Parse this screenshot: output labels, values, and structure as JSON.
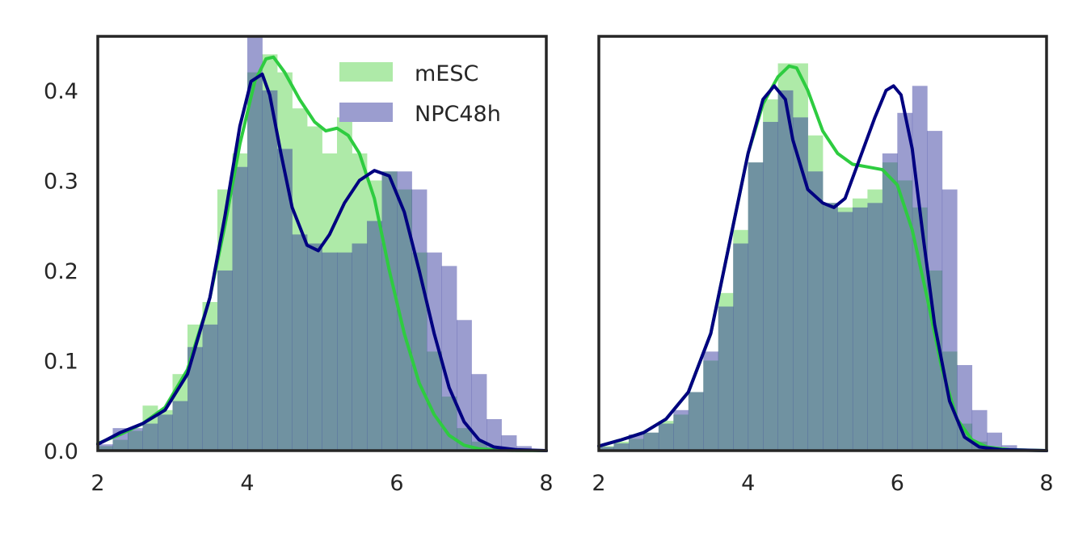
{
  "chart_data": [
    {
      "type": "histogram+kde",
      "panel": "left",
      "xlim": [
        2,
        8
      ],
      "ylim": [
        0,
        0.46
      ],
      "xticks": [
        "2",
        "4",
        "6",
        "8"
      ],
      "yticks": [
        "0.0",
        "0.1",
        "0.2",
        "0.3",
        "0.4"
      ],
      "grid": false,
      "legend": {
        "placement": "top-right",
        "entries": [
          "mESC",
          "NPC48h"
        ]
      },
      "bin_edges": [
        2.0,
        2.2,
        2.4,
        2.6,
        2.8,
        3.0,
        3.2,
        3.4,
        3.6,
        3.8,
        4.0,
        4.2,
        4.4,
        4.6,
        4.8,
        5.0,
        5.2,
        5.4,
        5.6,
        5.8,
        6.0,
        6.2,
        6.4,
        6.6,
        6.8,
        7.0,
        7.2,
        7.4,
        7.6,
        7.8,
        8.0
      ],
      "series": [
        {
          "name": "mESC",
          "color": "#2ecc40",
          "fill": "#aeeaa8",
          "hist": [
            0.005,
            0.012,
            0.022,
            0.05,
            0.045,
            0.085,
            0.14,
            0.165,
            0.29,
            0.33,
            0.42,
            0.44,
            0.42,
            0.38,
            0.36,
            0.33,
            0.37,
            0.33,
            0.3,
            0.31,
            0.29,
            0.22,
            0.11,
            0.06,
            0.025,
            0.01,
            0.004,
            0.001,
            0.0,
            0.0
          ],
          "kde_x": [
            2.0,
            2.3,
            2.6,
            2.9,
            3.2,
            3.5,
            3.7,
            3.9,
            4.1,
            4.25,
            4.35,
            4.5,
            4.7,
            4.9,
            5.05,
            5.2,
            5.35,
            5.5,
            5.7,
            5.9,
            6.1,
            6.3,
            6.5,
            6.7,
            6.9,
            7.1,
            7.3,
            7.6,
            8.0
          ],
          "kde_y": [
            0.008,
            0.018,
            0.03,
            0.048,
            0.09,
            0.17,
            0.25,
            0.34,
            0.41,
            0.435,
            0.437,
            0.42,
            0.39,
            0.365,
            0.355,
            0.358,
            0.35,
            0.33,
            0.28,
            0.2,
            0.13,
            0.075,
            0.04,
            0.017,
            0.006,
            0.002,
            0.0008,
            0.0002,
            0.0
          ]
        },
        {
          "name": "NPC48h",
          "color": "#000080",
          "fill": "#9b9dcf",
          "hist": [
            0.007,
            0.025,
            0.025,
            0.03,
            0.04,
            0.055,
            0.115,
            0.14,
            0.2,
            0.315,
            0.46,
            0.4,
            0.335,
            0.24,
            0.23,
            0.22,
            0.22,
            0.23,
            0.255,
            0.31,
            0.31,
            0.29,
            0.22,
            0.205,
            0.145,
            0.085,
            0.035,
            0.017,
            0.005,
            0.001
          ],
          "kde_x": [
            2.0,
            2.3,
            2.6,
            2.9,
            3.2,
            3.5,
            3.7,
            3.9,
            4.05,
            4.2,
            4.3,
            4.45,
            4.6,
            4.8,
            4.95,
            5.1,
            5.3,
            5.5,
            5.7,
            5.9,
            6.1,
            6.3,
            6.5,
            6.7,
            6.9,
            7.1,
            7.3,
            7.6,
            8.0
          ],
          "kde_y": [
            0.007,
            0.02,
            0.03,
            0.045,
            0.085,
            0.17,
            0.26,
            0.36,
            0.41,
            0.418,
            0.395,
            0.33,
            0.27,
            0.228,
            0.222,
            0.24,
            0.275,
            0.3,
            0.311,
            0.305,
            0.265,
            0.2,
            0.13,
            0.07,
            0.032,
            0.012,
            0.004,
            0.001,
            0.0
          ]
        }
      ]
    },
    {
      "type": "histogram+kde",
      "panel": "right",
      "xlim": [
        2,
        8
      ],
      "ylim": [
        0,
        0.46
      ],
      "xticks": [
        "2",
        "4",
        "6",
        "8"
      ],
      "yticks": [],
      "grid": false,
      "bin_edges": [
        2.0,
        2.2,
        2.4,
        2.6,
        2.8,
        3.0,
        3.2,
        3.4,
        3.6,
        3.8,
        4.0,
        4.2,
        4.4,
        4.6,
        4.8,
        5.0,
        5.2,
        5.4,
        5.6,
        5.8,
        6.0,
        6.2,
        6.4,
        6.6,
        6.8,
        7.0,
        7.2,
        7.4,
        7.6,
        7.8,
        8.0
      ],
      "series": [
        {
          "name": "mESC",
          "color": "#2ecc40",
          "fill": "#aeeaa8",
          "hist": [
            0.005,
            0.01,
            0.013,
            0.02,
            0.033,
            0.04,
            0.065,
            0.1,
            0.175,
            0.245,
            0.32,
            0.39,
            0.43,
            0.43,
            0.35,
            0.275,
            0.27,
            0.28,
            0.29,
            0.32,
            0.3,
            0.27,
            0.2,
            0.11,
            0.03,
            0.01,
            0.003,
            0.001,
            0.0,
            0.0
          ],
          "kde_x": [
            2.0,
            2.3,
            2.6,
            2.9,
            3.2,
            3.5,
            3.8,
            4.0,
            4.2,
            4.4,
            4.55,
            4.65,
            4.8,
            5.0,
            5.2,
            5.4,
            5.6,
            5.8,
            6.0,
            6.2,
            6.4,
            6.6,
            6.8,
            7.0,
            7.2,
            7.5,
            8.0
          ],
          "kde_y": [
            0.005,
            0.012,
            0.02,
            0.035,
            0.065,
            0.13,
            0.25,
            0.33,
            0.385,
            0.415,
            0.427,
            0.425,
            0.4,
            0.355,
            0.33,
            0.318,
            0.315,
            0.312,
            0.295,
            0.245,
            0.17,
            0.09,
            0.035,
            0.012,
            0.004,
            0.001,
            0.0
          ]
        },
        {
          "name": "NPC48h",
          "color": "#000080",
          "fill": "#9b9dcf",
          "hist": [
            0.004,
            0.008,
            0.018,
            0.02,
            0.03,
            0.045,
            0.065,
            0.11,
            0.16,
            0.23,
            0.32,
            0.365,
            0.4,
            0.37,
            0.31,
            0.275,
            0.265,
            0.27,
            0.275,
            0.33,
            0.375,
            0.405,
            0.355,
            0.29,
            0.095,
            0.045,
            0.02,
            0.006,
            0.001,
            0.0
          ],
          "kde_x": [
            2.0,
            2.3,
            2.6,
            2.9,
            3.2,
            3.5,
            3.8,
            4.0,
            4.2,
            4.35,
            4.5,
            4.6,
            4.8,
            5.0,
            5.15,
            5.3,
            5.5,
            5.7,
            5.85,
            5.95,
            6.05,
            6.2,
            6.35,
            6.5,
            6.7,
            6.9,
            7.1,
            7.4,
            8.0
          ],
          "kde_y": [
            0.005,
            0.012,
            0.02,
            0.035,
            0.065,
            0.13,
            0.25,
            0.33,
            0.39,
            0.405,
            0.39,
            0.345,
            0.29,
            0.275,
            0.27,
            0.28,
            0.325,
            0.37,
            0.4,
            0.405,
            0.395,
            0.335,
            0.235,
            0.14,
            0.055,
            0.015,
            0.004,
            0.001,
            0.0
          ]
        }
      ]
    }
  ]
}
